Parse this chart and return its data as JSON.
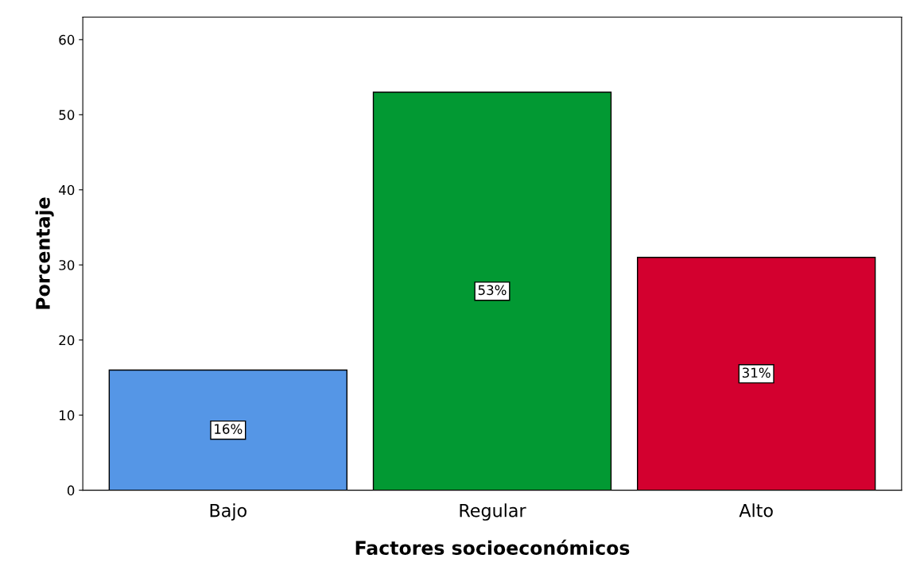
{
  "chart_data": {
    "type": "bar",
    "xlabel": "Factores socioeconómicos",
    "ylabel": "Porcentaje",
    "categories": [
      "Bajo",
      "Regular",
      "Alto"
    ],
    "values": [
      16,
      53,
      31
    ],
    "value_labels": [
      "16%",
      "53%",
      "31%"
    ],
    "colors": [
      "#5596e6",
      "#029933",
      "#d3002f"
    ],
    "ylim": [
      0,
      63
    ],
    "yticks": [
      0,
      10,
      20,
      30,
      40,
      50,
      60
    ],
    "grid": false
  }
}
